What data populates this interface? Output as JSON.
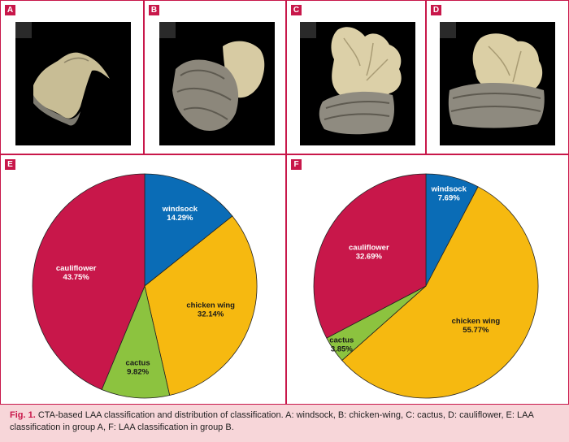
{
  "panels_top": [
    {
      "label": "A",
      "name": "windsock"
    },
    {
      "label": "B",
      "name": "chicken-wing"
    },
    {
      "label": "C",
      "name": "cactus"
    },
    {
      "label": "D",
      "name": "cauliflower"
    }
  ],
  "chart_data": [
    {
      "type": "pie",
      "panel_label": "E",
      "slices": [
        {
          "name": "windsock",
          "value": 14.29,
          "label": "14.29%",
          "color": "#0a6cb6"
        },
        {
          "name": "chicken wing",
          "value": 32.14,
          "label": "32.14%",
          "color": "#f6b910"
        },
        {
          "name": "cactus",
          "value": 9.82,
          "label": "9.82%",
          "color": "#8cc33f"
        },
        {
          "name": "cauliflower",
          "value": 43.75,
          "label": "43.75%",
          "color": "#c8174a"
        }
      ]
    },
    {
      "type": "pie",
      "panel_label": "F",
      "slices": [
        {
          "name": "windsock",
          "value": 7.69,
          "label": "7.69%",
          "color": "#0a6cb6"
        },
        {
          "name": "chicken wing",
          "value": 55.77,
          "label": "55.77%",
          "color": "#f6b910"
        },
        {
          "name": "cactus",
          "value": 3.85,
          "label": "3.85%",
          "color": "#8cc33f"
        },
        {
          "name": "cauliflower",
          "value": 32.69,
          "label": "32.69%",
          "color": "#c8174a"
        }
      ]
    }
  ],
  "caption": {
    "lead": "Fig. 1.",
    "text": " CTA-based LAA classification and distribution of classification. A: windsock, B: chicken-wing, C: cactus, D: cauliflower, E: LAA classification in group A, F: LAA classification in group B."
  }
}
